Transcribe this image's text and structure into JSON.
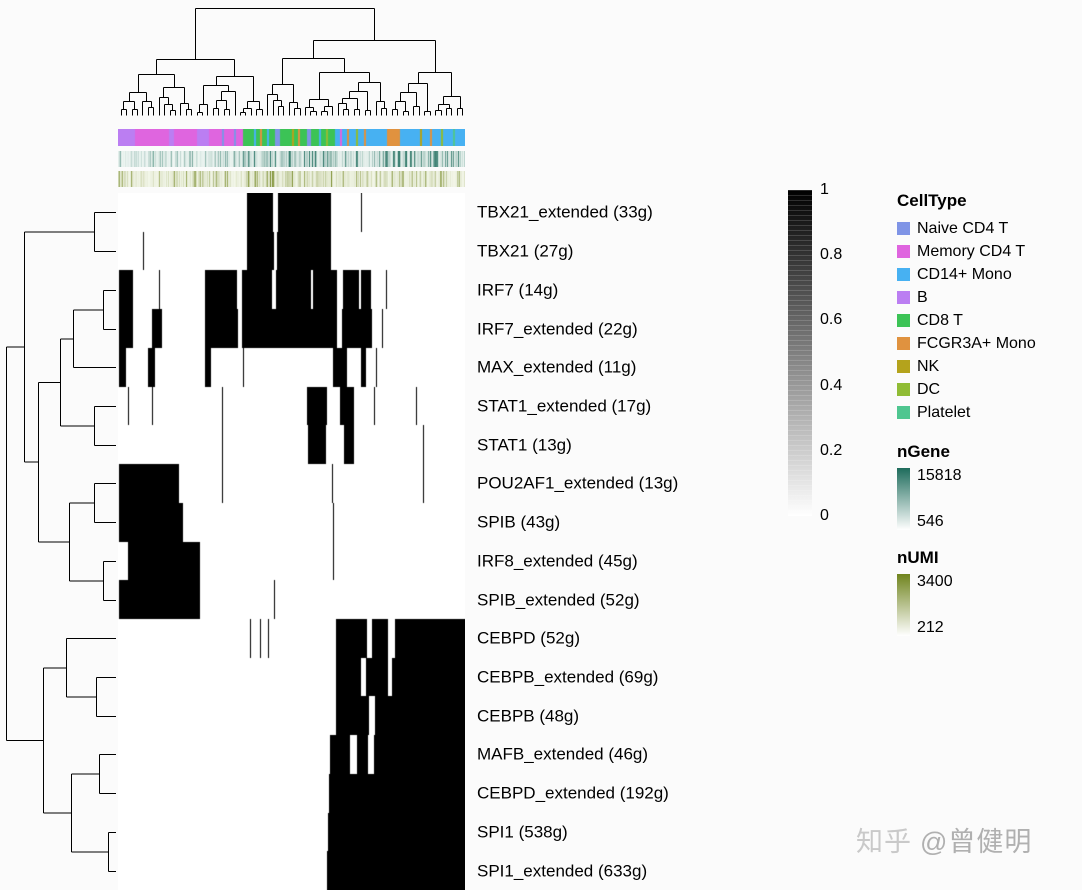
{
  "watermark": {
    "site": "知乎",
    "author": "@曾健明"
  },
  "colorbar": {
    "high_color": "#000000",
    "low_color": "#ffffff",
    "ticks": [
      {
        "value": 1,
        "label": "1"
      },
      {
        "value": 0.8,
        "label": "0.8"
      },
      {
        "value": 0.6,
        "label": "0.6"
      },
      {
        "value": 0.4,
        "label": "0.4"
      },
      {
        "value": 0.2,
        "label": "0.2"
      },
      {
        "value": 0,
        "label": "0"
      }
    ]
  },
  "legends": {
    "celltype": {
      "title": "CellType",
      "items": [
        {
          "label": "Naive CD4 T",
          "color": "#7f94e6"
        },
        {
          "label": "Memory CD4 T",
          "color": "#df65df"
        },
        {
          "label": "CD14+ Mono",
          "color": "#47b1f2"
        },
        {
          "label": "B",
          "color": "#bb7ef2"
        },
        {
          "label": "CD8 T",
          "color": "#3cc356"
        },
        {
          "label": "FCGR3A+ Mono",
          "color": "#e0923f"
        },
        {
          "label": "NK",
          "color": "#b4a31c"
        },
        {
          "label": "DC",
          "color": "#90bc35"
        },
        {
          "label": "Platelet",
          "color": "#4fc690"
        }
      ]
    },
    "ngene": {
      "title": "nGene",
      "max": "15818",
      "min": "546",
      "high_color": "#1e6c5c",
      "low_color": "#ffffff"
    },
    "numi": {
      "title": "nUMI",
      "max": "3400",
      "min": "212",
      "high_color": "#70841e",
      "low_color": "#ffffff"
    }
  },
  "chart_data": {
    "type": "heatmap",
    "matrix": "binary",
    "value_range": [
      0,
      1
    ],
    "cell_colors": {
      "active": "#000000",
      "inactive": "#ffffff"
    },
    "rows": [
      {
        "label": "TBX21_extended (33g)",
        "segments": [
          [
            0.372,
            0.448
          ],
          [
            0.462,
            0.614
          ],
          [
            0.699,
            0.702
          ]
        ]
      },
      {
        "label": "TBX21 (27g)",
        "segments": [
          [
            0.073,
            0.076
          ],
          [
            0.372,
            0.451
          ],
          [
            0.459,
            0.614
          ]
        ]
      },
      {
        "label": "IRF7 (14g)",
        "segments": [
          [
            0.004,
            0.042
          ],
          [
            0.118,
            0.122
          ],
          [
            0.25,
            0.344
          ],
          [
            0.357,
            0.444
          ],
          [
            0.454,
            0.556
          ],
          [
            0.563,
            0.631
          ],
          [
            0.647,
            0.694
          ],
          [
            0.7,
            0.729
          ],
          [
            0.772,
            0.775
          ]
        ]
      },
      {
        "label": "IRF7_extended (22g)",
        "segments": [
          [
            0.004,
            0.044
          ],
          [
            0.099,
            0.128
          ],
          [
            0.25,
            0.345
          ],
          [
            0.357,
            0.631
          ],
          [
            0.645,
            0.731
          ],
          [
            0.76,
            0.763
          ]
        ]
      },
      {
        "label": "MAX_extended (11g)",
        "segments": [
          [
            0.004,
            0.022
          ],
          [
            0.087,
            0.106
          ],
          [
            0.25,
            0.269
          ],
          [
            0.359,
            0.362
          ],
          [
            0.619,
            0.659
          ],
          [
            0.699,
            0.716
          ],
          [
            0.744,
            0.747
          ]
        ]
      },
      {
        "label": "STAT1_extended (17g)",
        "segments": [
          [
            0.028,
            0.032
          ],
          [
            0.097,
            0.101
          ],
          [
            0.299,
            0.304
          ],
          [
            0.545,
            0.601
          ],
          [
            0.639,
            0.681
          ],
          [
            0.739,
            0.742
          ],
          [
            0.859,
            0.862
          ]
        ]
      },
      {
        "label": "STAT1 (13g)",
        "segments": [
          [
            0.3,
            0.303
          ],
          [
            0.547,
            0.599
          ],
          [
            0.651,
            0.681
          ],
          [
            0.879,
            0.882
          ]
        ]
      },
      {
        "label": "POU2AF1_extended (13g)",
        "segments": [
          [
            0.004,
            0.176
          ],
          [
            0.3,
            0.304
          ],
          [
            0.617,
            0.621
          ],
          [
            0.879,
            0.883
          ]
        ]
      },
      {
        "label": "SPIB (43g)",
        "segments": [
          [
            0.004,
            0.186
          ],
          [
            0.62,
            0.623
          ]
        ]
      },
      {
        "label": "IRF8_extended (45g)",
        "segments": [
          [
            0.028,
            0.236
          ],
          [
            0.62,
            0.622
          ]
        ]
      },
      {
        "label": "SPIB_extended (52g)",
        "segments": [
          [
            0.004,
            0.236
          ],
          [
            0.45,
            0.453
          ]
        ]
      },
      {
        "label": "CEBPD (52g)",
        "segments": [
          [
            0.379,
            0.382
          ],
          [
            0.408,
            0.411
          ],
          [
            0.431,
            0.434
          ],
          [
            0.627,
            0.719
          ],
          [
            0.733,
            0.779
          ],
          [
            0.798,
            1.0
          ]
        ]
      },
      {
        "label": "CEBPB_extended (69g)",
        "segments": [
          [
            0.627,
            0.701
          ],
          [
            0.714,
            0.779
          ],
          [
            0.789,
            1.0
          ]
        ]
      },
      {
        "label": "CEBPB (48g)",
        "segments": [
          [
            0.627,
            0.723
          ],
          [
            0.741,
            1.0
          ]
        ]
      },
      {
        "label": "MAFB_extended (46g)",
        "segments": [
          [
            0.611,
            0.669
          ],
          [
            0.689,
            0.721
          ],
          [
            0.739,
            1.0
          ]
        ]
      },
      {
        "label": "CEBPD_extended (192g)",
        "segments": [
          [
            0.608,
            1.0
          ]
        ]
      },
      {
        "label": "SPI1 (538g)",
        "segments": [
          [
            0.606,
            1.0
          ]
        ]
      },
      {
        "label": "SPI1_extended (633g)",
        "segments": [
          [
            0.603,
            1.0
          ]
        ]
      }
    ],
    "column_annotations": {
      "CellType": {
        "segments": [
          {
            "label": "B",
            "start": 0.0,
            "end": 0.05
          },
          {
            "label": "Memory CD4 T",
            "start": 0.05,
            "end": 0.148
          },
          {
            "label": "B",
            "start": 0.148,
            "end": 0.162
          },
          {
            "label": "Memory CD4 T",
            "start": 0.162,
            "end": 0.228
          },
          {
            "label": "B",
            "start": 0.228,
            "end": 0.262
          },
          {
            "label": "Memory CD4 T",
            "start": 0.262,
            "end": 0.36
          },
          {
            "label": "CD8 T",
            "start": 0.36,
            "end": 0.452
          },
          {
            "label": "Naive CD4 T",
            "start": 0.452,
            "end": 0.468
          },
          {
            "label": "CD8 T",
            "start": 0.468,
            "end": 0.545
          },
          {
            "label": "Naive CD4 T",
            "start": 0.545,
            "end": 0.556
          },
          {
            "label": "CD8 T",
            "start": 0.556,
            "end": 0.625
          },
          {
            "label": "CD14+ Mono",
            "start": 0.625,
            "end": 0.775
          },
          {
            "label": "FCGR3A+ Mono",
            "start": 0.775,
            "end": 0.812
          },
          {
            "label": "CD14+ Mono",
            "start": 0.812,
            "end": 1.0
          }
        ],
        "specks": [
          {
            "label": "Naive CD4 T",
            "x": 0.3
          },
          {
            "label": "Naive CD4 T",
            "x": 0.335
          },
          {
            "label": "CD14+ Mono",
            "x": 0.392
          },
          {
            "label": "FCGR3A+ Mono",
            "x": 0.41
          },
          {
            "label": "CD14+ Mono",
            "x": 0.43
          },
          {
            "label": "NK",
            "x": 0.5
          },
          {
            "label": "FCGR3A+ Mono",
            "x": 0.52
          },
          {
            "label": "CD14+ Mono",
            "x": 0.578
          },
          {
            "label": "DC",
            "x": 0.6
          },
          {
            "label": "Memory CD4 T",
            "x": 0.64
          },
          {
            "label": "FCGR3A+ Mono",
            "x": 0.66
          },
          {
            "label": "DC",
            "x": 0.685
          },
          {
            "label": "FCGR3A+ Mono",
            "x": 0.71
          },
          {
            "label": "NK",
            "x": 0.87
          },
          {
            "label": "FCGR3A+ Mono",
            "x": 0.9
          },
          {
            "label": "DC",
            "x": 0.93
          },
          {
            "label": "Platelet",
            "x": 0.965
          }
        ]
      },
      "nGene": {
        "max": 15818,
        "min": 546,
        "high_color": "#1e6c5c",
        "base_color": "#f3f9f6"
      },
      "nUMI": {
        "max": 3400,
        "min": 212,
        "high_color": "#70841e",
        "base_color": "#f6f9ee"
      }
    },
    "row_dendrogram": [
      0.02,
      [
        0.18,
        [
          0.8,
          0,
          1
        ],
        [
          0.3,
          [
            0.5,
            [
              0.62,
              [
                0.88,
                2,
                3
              ],
              4
            ],
            [
              0.8,
              5,
              6
            ]
          ],
          [
            0.58,
            [
              0.8,
              7,
              8
            ],
            [
              0.88,
              9,
              10
            ]
          ]
        ]
      ],
      [
        0.35,
        [
          0.55,
          11,
          [
            0.82,
            12,
            13
          ]
        ],
        [
          0.6,
          [
            0.85,
            14,
            15
          ],
          [
            0.93,
            16,
            17
          ]
        ]
      ]
    ],
    "col_dendrogram": {
      "leaves": 64,
      "seed": 11
    }
  }
}
